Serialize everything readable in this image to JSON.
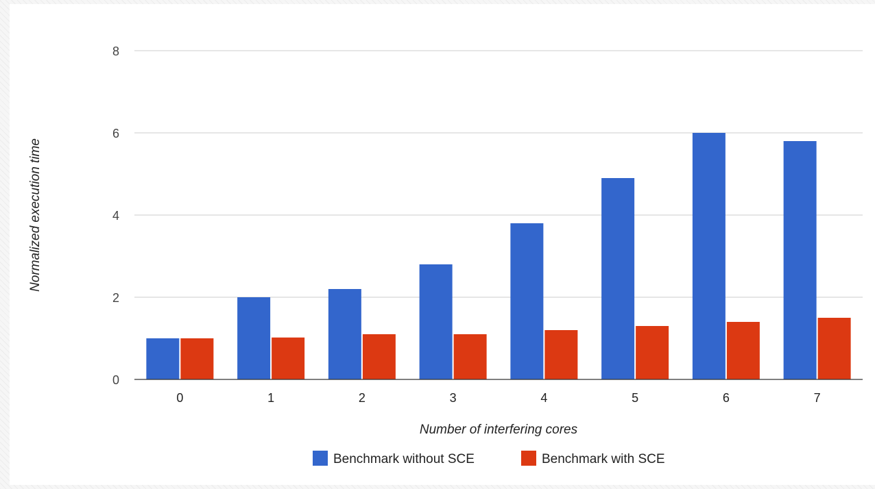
{
  "chart_data": {
    "type": "bar",
    "title": "",
    "xlabel": "Number of interfering cores",
    "ylabel": "Normalized execution time",
    "categories": [
      "0",
      "1",
      "2",
      "3",
      "4",
      "5",
      "6",
      "7"
    ],
    "series": [
      {
        "name": "Benchmark without SCE",
        "color": "#3366cc",
        "values": [
          1.0,
          2.0,
          2.2,
          2.8,
          3.8,
          4.9,
          6.0,
          5.8
        ]
      },
      {
        "name": "Benchmark with SCE",
        "color": "#dc3912",
        "values": [
          1.0,
          1.02,
          1.1,
          1.1,
          1.2,
          1.3,
          1.4,
          1.5
        ]
      }
    ],
    "ylim": [
      0,
      8
    ],
    "yticks": [
      0,
      2,
      4,
      6,
      8
    ],
    "grid": true,
    "legend_position": "bottom"
  }
}
